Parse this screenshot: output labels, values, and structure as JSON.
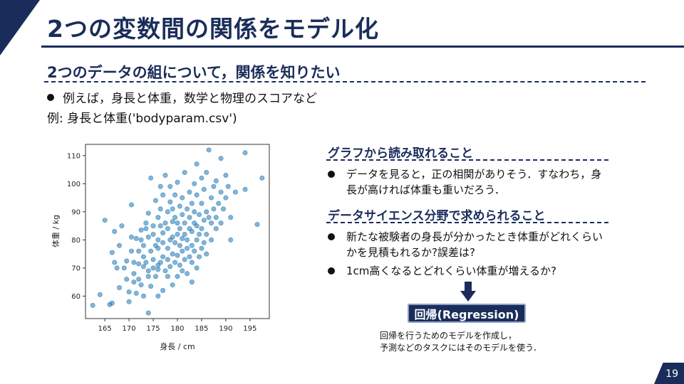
{
  "slide": {
    "title": "2つの変数間の関係をモデル化",
    "subtitle": "2つのデータの組について，関係を知りたい",
    "bullet1": "例えば，身長と体重，数学と物理のスコアなど",
    "example_line": "例: 身長と体重('bodyparam.csv')",
    "page_number": "19"
  },
  "right": {
    "heading1": "グラフから読み取れること",
    "bullet1": "データを見ると，正の相関がありそう．すなわち，身長が高ければ体重も重いだろう．",
    "heading2": "データサイエンス分野で求められること",
    "bullet2": "新たな被験者の身長が分かったとき体重がどれくらいかを見積もれるか?誤差は?",
    "bullet3": "1cm高くなるとどれくらい体重が増えるか?",
    "regression_label": "回帰(Regression)",
    "note_line1": "回帰を行うためのモデルを作成し，",
    "note_line2": "予測などのタスクにはそのモデルを使う．"
  },
  "colors": {
    "navy": "#1a2d5a",
    "point": "#1f77b4"
  },
  "chart_data": {
    "type": "scatter",
    "xlabel": "身長 / cm",
    "ylabel": "体重 / kg",
    "xlim": [
      161,
      199
    ],
    "ylim": [
      52,
      114
    ],
    "xticks": [
      165,
      170,
      175,
      180,
      185,
      190,
      195
    ],
    "yticks": [
      60,
      70,
      80,
      90,
      100,
      110
    ],
    "grid": false,
    "points": [
      [
        162.5,
        56.7
      ],
      [
        164,
        60.5
      ],
      [
        165,
        87
      ],
      [
        166,
        57
      ],
      [
        166.5,
        57.5
      ],
      [
        166.5,
        75.5
      ],
      [
        167,
        72
      ],
      [
        167.5,
        70
      ],
      [
        167,
        83
      ],
      [
        168,
        78
      ],
      [
        168,
        63
      ],
      [
        168.5,
        85
      ],
      [
        169,
        70
      ],
      [
        169.5,
        66
      ],
      [
        169.5,
        72.5
      ],
      [
        170,
        58
      ],
      [
        170,
        61.5
      ],
      [
        170.5,
        76
      ],
      [
        170.5,
        81
      ],
      [
        170.5,
        92.5
      ],
      [
        171,
        68
      ],
      [
        171,
        65
      ],
      [
        171,
        72
      ],
      [
        171.5,
        80.5
      ],
      [
        171.5,
        61
      ],
      [
        172,
        66
      ],
      [
        172,
        71.5
      ],
      [
        172,
        76
      ],
      [
        172.5,
        80
      ],
      [
        172.5,
        83.5
      ],
      [
        172.5,
        64
      ],
      [
        173,
        60
      ],
      [
        173,
        70.5
      ],
      [
        173,
        74
      ],
      [
        173,
        78
      ],
      [
        173.5,
        84
      ],
      [
        173.5,
        86
      ],
      [
        173.5,
        72
      ],
      [
        174,
        54
      ],
      [
        174,
        67
      ],
      [
        174,
        69
      ],
      [
        174,
        81
      ],
      [
        174,
        89.5
      ],
      [
        174.5,
        76
      ],
      [
        174.5,
        63.5
      ],
      [
        174.5,
        102
      ],
      [
        175,
        70
      ],
      [
        175,
        73
      ],
      [
        175,
        82
      ],
      [
        175,
        85
      ],
      [
        175.5,
        78
      ],
      [
        175.5,
        94
      ],
      [
        175.5,
        67
      ],
      [
        176,
        60
      ],
      [
        176,
        69.5
      ],
      [
        176,
        71
      ],
      [
        176,
        77
      ],
      [
        176,
        80
      ],
      [
        176,
        88
      ],
      [
        176.5,
        72
      ],
      [
        176.5,
        85
      ],
      [
        176.5,
        91
      ],
      [
        176.5,
        99
      ],
      [
        177,
        62
      ],
      [
        177,
        74
      ],
      [
        177,
        79
      ],
      [
        177,
        82.5
      ],
      [
        177,
        96
      ],
      [
        177.5,
        69
      ],
      [
        177.5,
        86
      ],
      [
        177.5,
        103
      ],
      [
        178,
        67
      ],
      [
        178,
        73
      ],
      [
        178,
        77
      ],
      [
        178,
        84
      ],
      [
        178,
        90
      ],
      [
        178.5,
        70.5
      ],
      [
        178.5,
        80
      ],
      [
        178.5,
        93.5
      ],
      [
        178.5,
        99
      ],
      [
        179,
        64
      ],
      [
        179,
        75
      ],
      [
        179,
        81
      ],
      [
        179,
        86.5
      ],
      [
        179,
        91
      ],
      [
        179.5,
        72
      ],
      [
        179.5,
        79
      ],
      [
        179.5,
        88
      ],
      [
        179.5,
        96
      ],
      [
        180,
        67
      ],
      [
        180,
        74.5
      ],
      [
        180,
        82
      ],
      [
        180,
        86
      ],
      [
        180,
        100.5
      ],
      [
        180.5,
        71
      ],
      [
        180.5,
        78
      ],
      [
        180.5,
        84
      ],
      [
        180.5,
        92
      ],
      [
        181,
        69
      ],
      [
        181,
        76
      ],
      [
        181,
        80.5
      ],
      [
        181,
        89
      ],
      [
        181,
        95
      ],
      [
        181.5,
        73
      ],
      [
        181.5,
        82
      ],
      [
        181.5,
        86
      ],
      [
        181.5,
        104
      ],
      [
        182,
        68
      ],
      [
        182,
        77
      ],
      [
        182,
        80
      ],
      [
        182,
        91
      ],
      [
        182.5,
        74
      ],
      [
        182.5,
        84
      ],
      [
        182.5,
        88
      ],
      [
        182.5,
        97
      ],
      [
        183,
        65
      ],
      [
        183,
        72
      ],
      [
        183,
        78
      ],
      [
        183,
        83
      ],
      [
        183,
        93
      ],
      [
        183.5,
        76
      ],
      [
        183.5,
        86
      ],
      [
        183.5,
        90
      ],
      [
        183.5,
        100
      ],
      [
        184,
        70
      ],
      [
        184,
        80
      ],
      [
        184,
        85
      ],
      [
        184,
        96
      ],
      [
        184,
        107
      ],
      [
        184.5,
        74
      ],
      [
        184.5,
        82
      ],
      [
        184.5,
        89
      ],
      [
        185,
        77
      ],
      [
        185,
        84
      ],
      [
        185,
        93
      ],
      [
        185,
        102
      ],
      [
        185.5,
        79
      ],
      [
        185.5,
        87
      ],
      [
        185.5,
        98
      ],
      [
        186,
        75
      ],
      [
        186,
        82
      ],
      [
        186,
        90
      ],
      [
        186,
        104
      ],
      [
        186.5,
        88
      ],
      [
        186.5,
        112
      ],
      [
        187,
        80
      ],
      [
        187,
        86
      ],
      [
        187,
        95
      ],
      [
        187.5,
        91
      ],
      [
        187.5,
        99
      ],
      [
        188,
        84
      ],
      [
        188,
        88
      ],
      [
        188,
        101
      ],
      [
        188.5,
        93
      ],
      [
        189,
        86
      ],
      [
        189,
        97
      ],
      [
        189,
        109
      ],
      [
        189.5,
        91
      ],
      [
        190,
        95
      ],
      [
        190,
        103
      ],
      [
        190.5,
        99
      ],
      [
        191,
        80
      ],
      [
        191,
        88
      ],
      [
        192,
        97
      ],
      [
        194,
        98
      ],
      [
        194,
        111
      ],
      [
        196.5,
        85.5
      ],
      [
        197.5,
        102
      ]
    ]
  }
}
